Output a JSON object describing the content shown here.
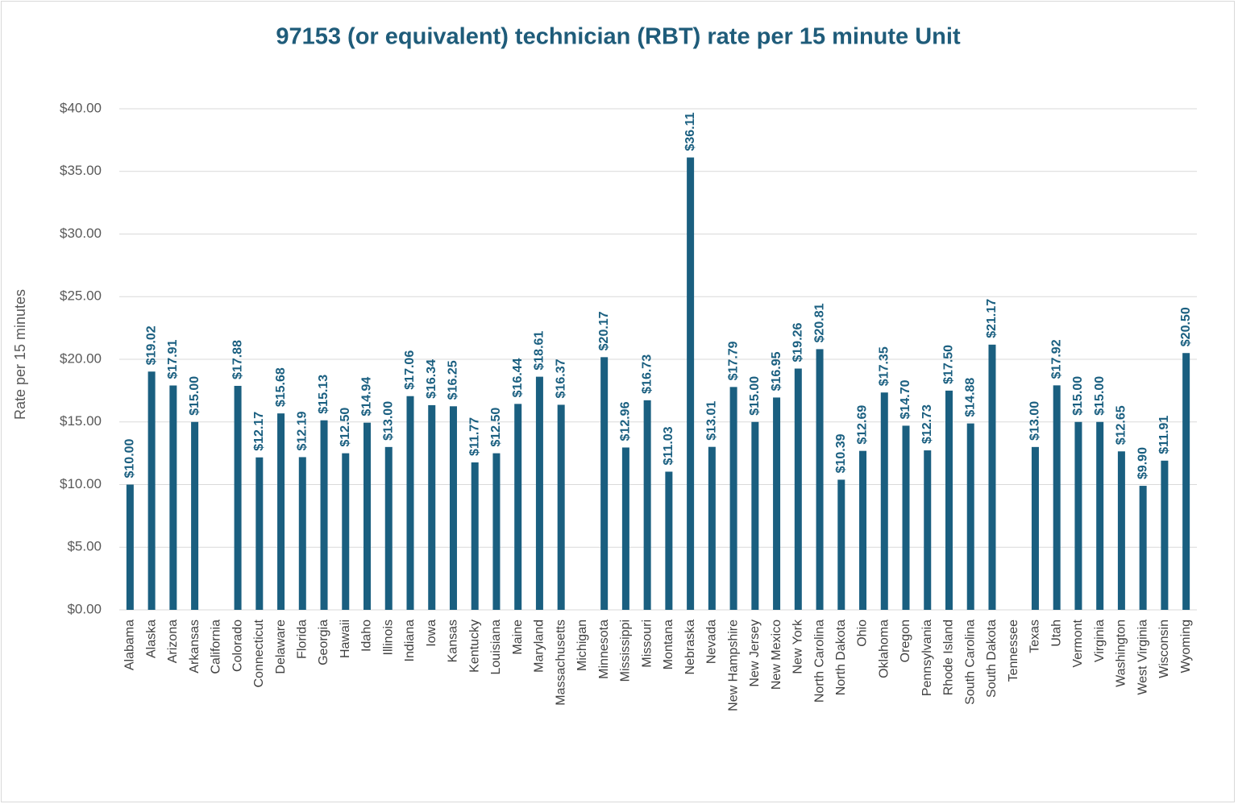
{
  "chart_data": {
    "type": "bar",
    "title": "97153 (or equivalent) technician (RBT) rate per 15 minute Unit",
    "y_label": "Rate per 15 minutes",
    "categories": [
      "Alabama",
      "Alaska",
      "Arizona",
      "Arkansas",
      "California",
      "Colorado",
      "Connecticut",
      "Delaware",
      "Florida",
      "Georgia",
      "Hawaii",
      "Idaho",
      "Illinois",
      "Indiana",
      "Iowa",
      "Kansas",
      "Kentucky",
      "Louisiana",
      "Maine",
      "Maryland",
      "Massachusetts",
      "Michigan",
      "Minnesota",
      "Mississippi",
      "Missouri",
      "Montana",
      "Nebraska",
      "Nevada",
      "New Hampshire",
      "New Jersey",
      "New Mexico",
      "New York",
      "North Carolina",
      "North Dakota",
      "Ohio",
      "Oklahoma",
      "Oregon",
      "Pennsylvania",
      "Rhode Island",
      "South Carolina",
      "South Dakota",
      "Tennessee",
      "Texas",
      "Utah",
      "Vermont",
      "Virginia",
      "Washington",
      "West Virginia",
      "Wisconsin",
      "Wyoming"
    ],
    "values": [
      10,
      19.02,
      17.91,
      15,
      null,
      17.88,
      12.17,
      15.68,
      12.19,
      15.13,
      12.5,
      14.94,
      13,
      17.06,
      16.34,
      16.25,
      11.77,
      12.5,
      16.44,
      18.61,
      16.37,
      null,
      20.17,
      12.96,
      16.73,
      11.03,
      36.11,
      13.01,
      17.79,
      15,
      16.95,
      19.26,
      20.81,
      10.39,
      12.69,
      17.35,
      14.7,
      12.73,
      17.5,
      14.88,
      21.17,
      null,
      13,
      17.92,
      15,
      15,
      12.65,
      9.9,
      11.91,
      20.5
    ],
    "value_labels": [
      "$10.00",
      "$19.02",
      "$17.91",
      "$15.00",
      null,
      "$17.88",
      "$12.17",
      "$15.68",
      "$12.19",
      "$15.13",
      "$12.50",
      "$14.94",
      "$13.00",
      "$17.06",
      "$16.34",
      "$16.25",
      "$11.77",
      "$12.50",
      "$16.44",
      "$18.61",
      "$16.37",
      null,
      "$20.17",
      "$12.96",
      "$16.73",
      "$11.03",
      "$36.11",
      "$13.01",
      "$17.79",
      "$15.00",
      "$16.95",
      "$19.26",
      "$20.81",
      "$10.39",
      "$12.69",
      "$17.35",
      "$14.70",
      "$12.73",
      "$17.50",
      "$14.88",
      "$21.17",
      null,
      "$13.00",
      "$17.92",
      "$15.00",
      "$15.00",
      "$12.65",
      "$9.90",
      "$11.91",
      "$20.50"
    ],
    "color": "#1a5f80",
    "ylim": [
      0,
      40
    ],
    "yticks": [
      {
        "value": 0,
        "label": "$0.00"
      },
      {
        "value": 5,
        "label": "$5.00"
      },
      {
        "value": 10,
        "label": "$10.00"
      },
      {
        "value": 15,
        "label": "$15.00"
      },
      {
        "value": 20,
        "label": "$20.00"
      },
      {
        "value": 25,
        "label": "$25.00"
      },
      {
        "value": 30,
        "label": "$30.00"
      },
      {
        "value": 35,
        "label": "$35.00"
      },
      {
        "value": 40,
        "label": "$40.00"
      }
    ],
    "grid": true
  }
}
